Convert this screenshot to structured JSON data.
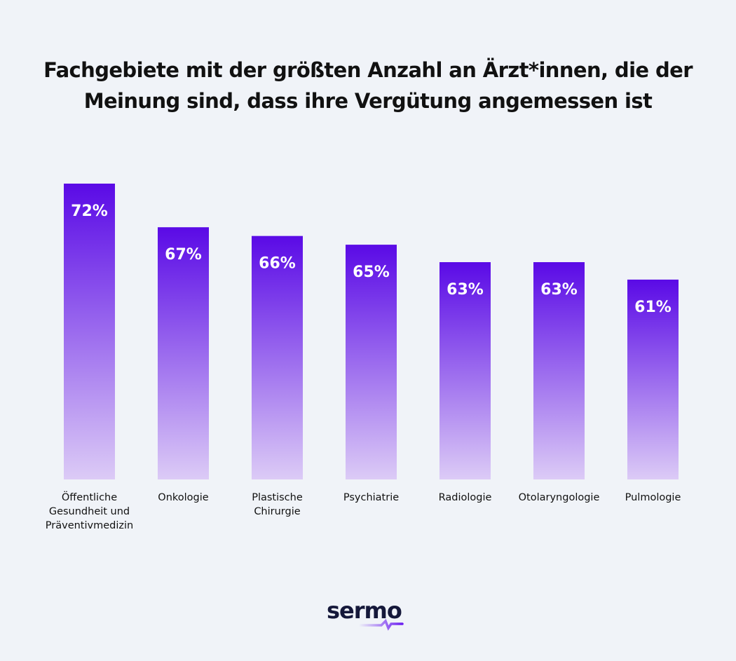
{
  "chart_data": {
    "type": "bar",
    "title": "Fachgebiete mit der größten Anzahl an Ärzt*innen, die der Meinung sind, dass ihre Vergütung angemessen ist",
    "categories": [
      "Öffentliche Gesundheit und Präventivmedizin",
      "Onkologie",
      "Plastische Chirurgie",
      "Psychiatrie",
      "Radiologie",
      "Otolaryngologie",
      "Pulmologie"
    ],
    "values": [
      72,
      67,
      66,
      65,
      63,
      63,
      61
    ],
    "value_labels": [
      "72%",
      "67%",
      "66%",
      "65%",
      "63%",
      "63%",
      "61%"
    ],
    "xlabel": "",
    "ylabel": "",
    "grid": false,
    "colors": {
      "bar_top": "#5a0ae6",
      "bar_bottom": "#dccbf6",
      "background": "#f0f3f8"
    }
  },
  "brand": {
    "logo_text": "sermo",
    "accent": "#6b1cf0"
  }
}
